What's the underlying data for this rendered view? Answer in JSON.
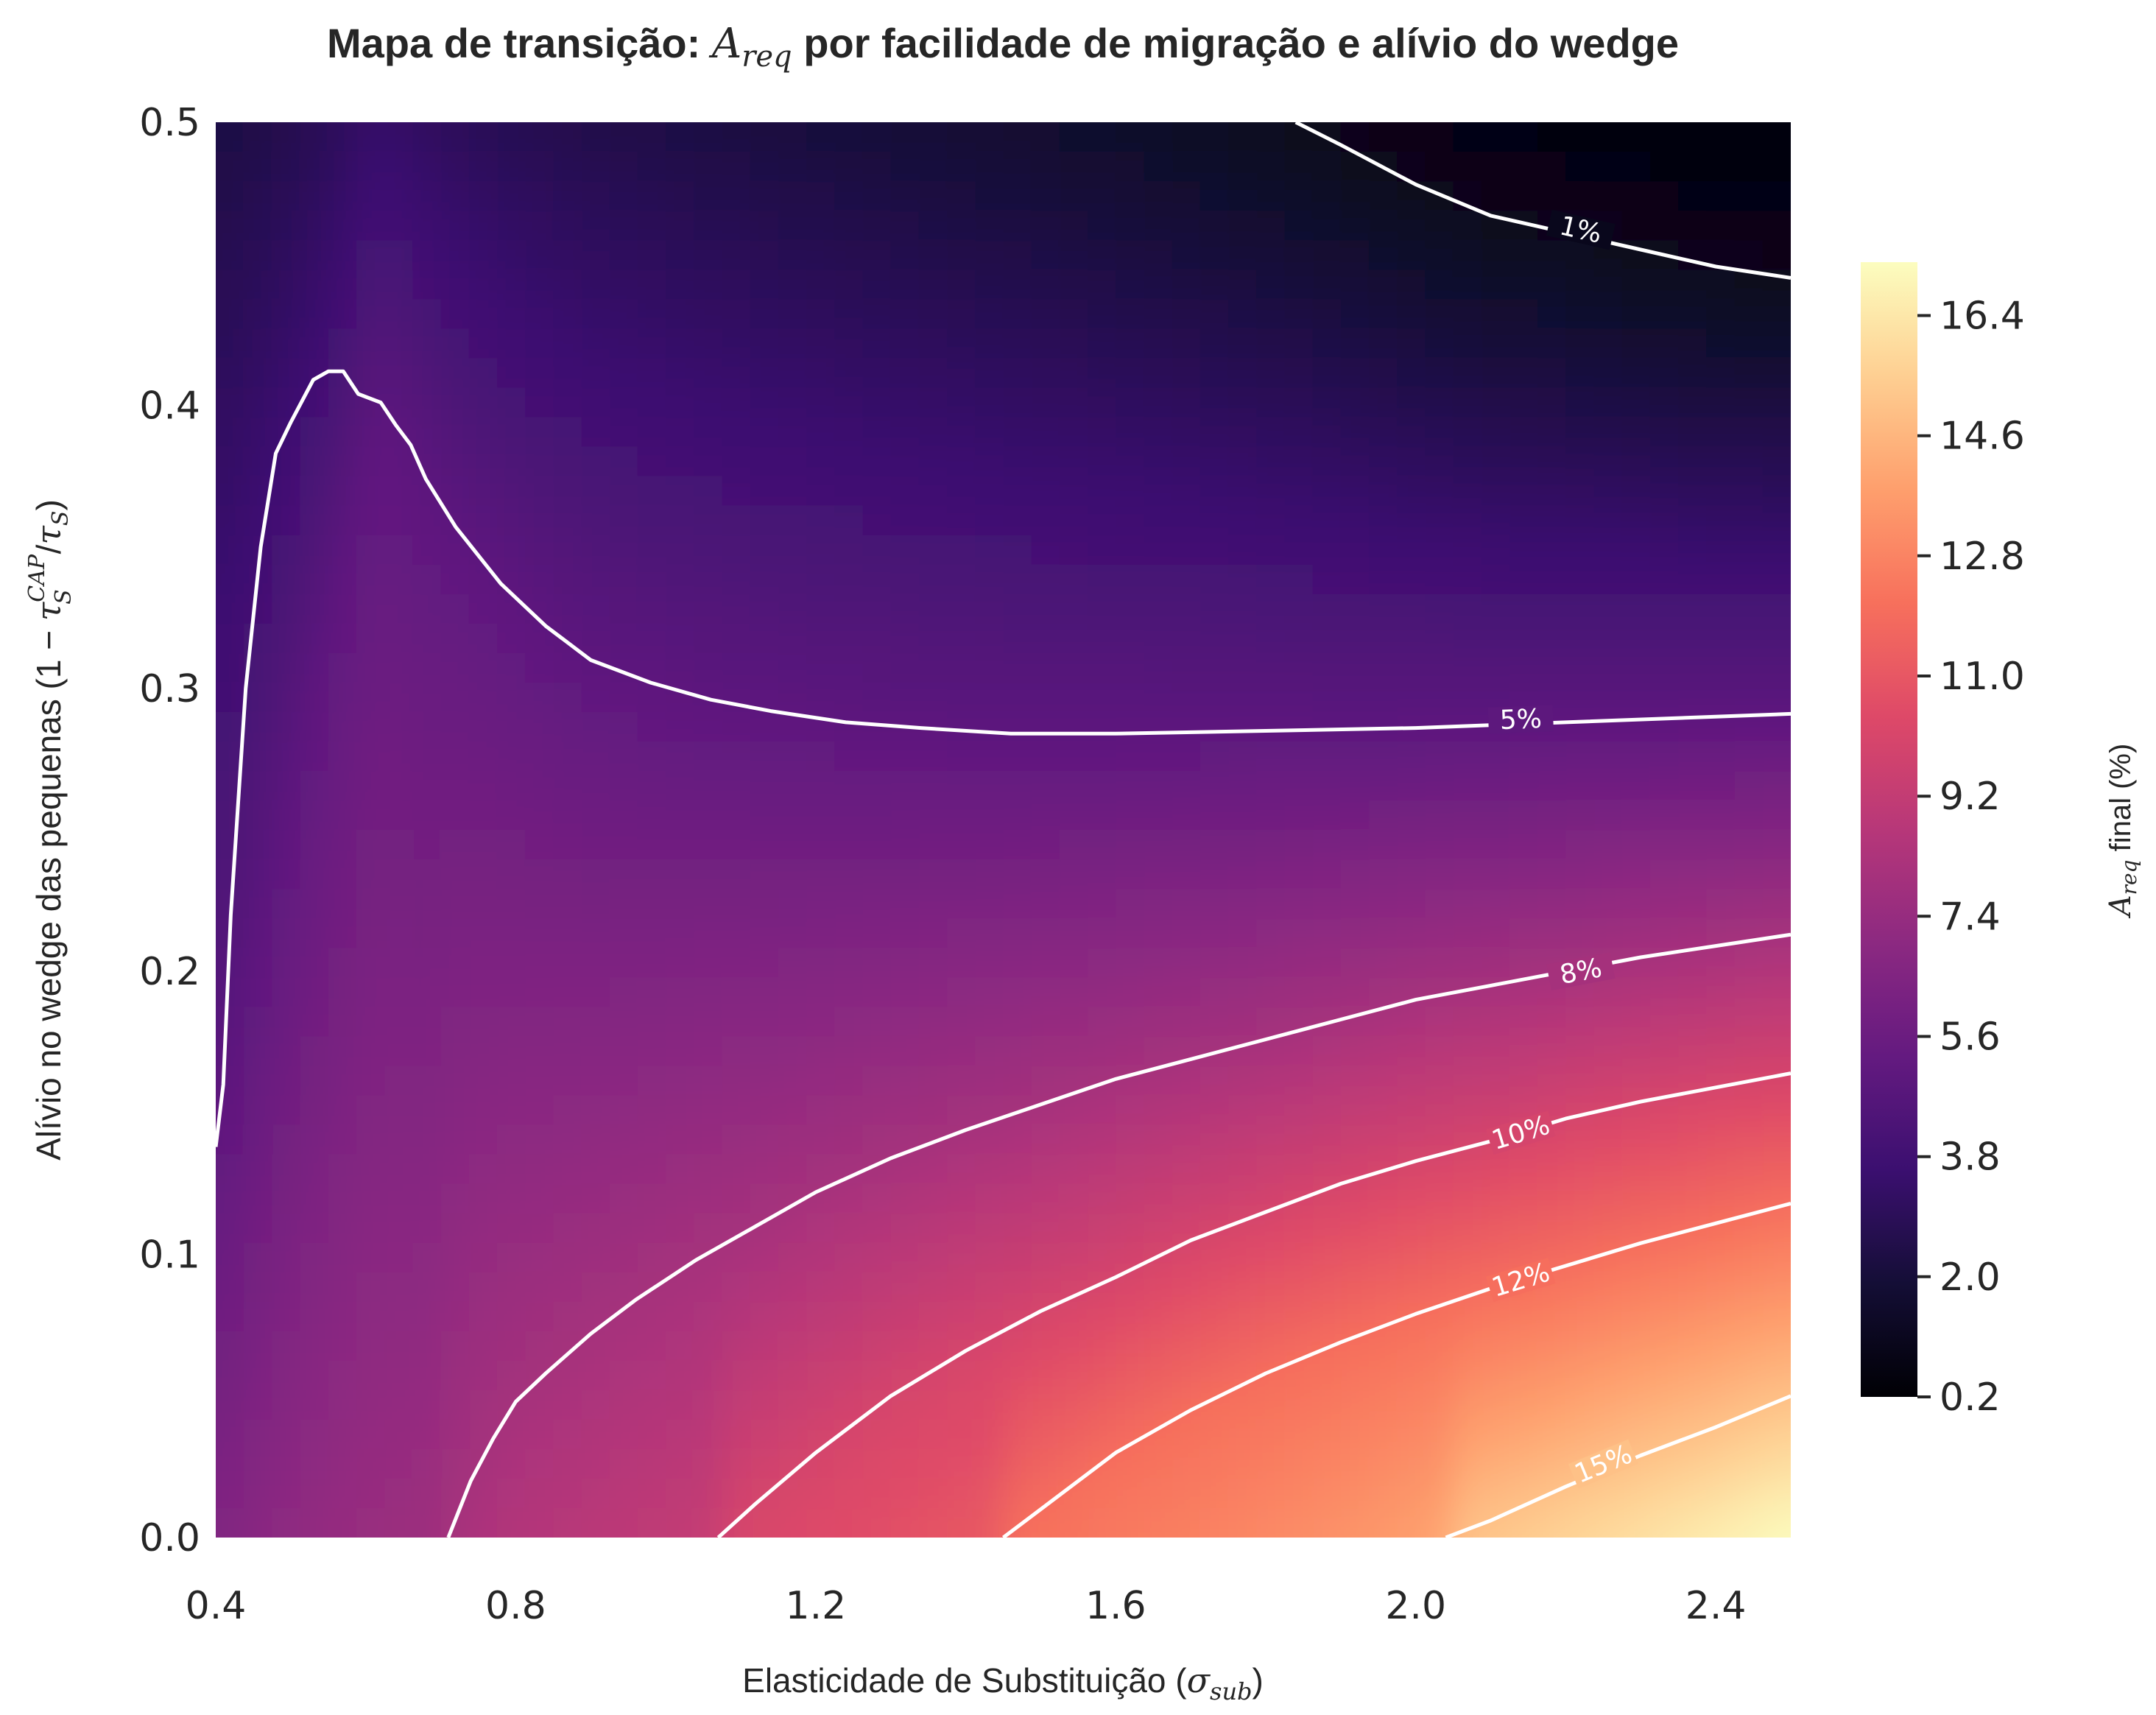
{
  "chart_data": {
    "type": "heatmap",
    "subtype": "filled-contour",
    "title_prefix": "Mapa de transição: ",
    "title_var": "A",
    "title_sub": "req",
    "title_suffix": " por facilidade de migração e alívio do wedge",
    "xlabel_prefix": "Elasticidade de Substituição (",
    "xlabel_var": "σ",
    "xlabel_sub": "sub",
    "xlabel_suffix": ")",
    "ylabel_prefix": "Alívio no wedge das pequenas (1 − ",
    "ylabel_var": "τ",
    "ylabel_sub": "S",
    "ylabel_sup": "CAP",
    "ylabel_mid": "/",
    "ylabel_var2": "τ",
    "ylabel_sub2": "S",
    "ylabel_suffix": ")",
    "xlim": [
      0.4,
      2.5
    ],
    "ylim": [
      0.0,
      0.5
    ],
    "x_ticks": [
      "0.4",
      "0.8",
      "1.2",
      "1.6",
      "2.0",
      "2.4"
    ],
    "y_ticks": [
      "0.0",
      "0.1",
      "0.2",
      "0.3",
      "0.4",
      "0.5"
    ],
    "colormap": "magma",
    "colorbar": {
      "var": "A",
      "sub": "req",
      "suffix": " final (%)",
      "range": [
        0.2,
        17.2
      ],
      "ticks": [
        "0.2",
        "2.0",
        "3.8",
        "5.6",
        "7.4",
        "9.2",
        "11.0",
        "12.8",
        "14.6",
        "16.4"
      ]
    },
    "contours": [
      {
        "level": 1,
        "label": "1%",
        "label_at": [
          2.22,
          0.462
        ],
        "points": [
          [
            1.84,
            0.5
          ],
          [
            1.9,
            0.492
          ],
          [
            2.0,
            0.478
          ],
          [
            2.1,
            0.467
          ],
          [
            2.2,
            0.461
          ],
          [
            2.3,
            0.455
          ],
          [
            2.4,
            0.449
          ],
          [
            2.5,
            0.445
          ]
        ]
      },
      {
        "level": 5,
        "label": "5%",
        "label_at": [
          2.14,
          0.289
        ],
        "points": [
          [
            0.4,
            0.138
          ],
          [
            0.41,
            0.16
          ],
          [
            0.42,
            0.22
          ],
          [
            0.44,
            0.3
          ],
          [
            0.46,
            0.35
          ],
          [
            0.48,
            0.383
          ],
          [
            0.5,
            0.394
          ],
          [
            0.53,
            0.409
          ],
          [
            0.55,
            0.412
          ],
          [
            0.57,
            0.412
          ],
          [
            0.59,
            0.404
          ],
          [
            0.62,
            0.401
          ],
          [
            0.64,
            0.393
          ],
          [
            0.66,
            0.386
          ],
          [
            0.68,
            0.374
          ],
          [
            0.72,
            0.357
          ],
          [
            0.78,
            0.337
          ],
          [
            0.84,
            0.322
          ],
          [
            0.9,
            0.31
          ],
          [
            0.98,
            0.302
          ],
          [
            1.06,
            0.296
          ],
          [
            1.14,
            0.292
          ],
          [
            1.24,
            0.288
          ],
          [
            1.34,
            0.286
          ],
          [
            1.46,
            0.284
          ],
          [
            1.6,
            0.284
          ],
          [
            1.8,
            0.285
          ],
          [
            2.0,
            0.286
          ],
          [
            2.2,
            0.288
          ],
          [
            2.4,
            0.29
          ],
          [
            2.5,
            0.291
          ]
        ]
      },
      {
        "level": 8,
        "label": "8%",
        "label_at": [
          2.22,
          0.2
        ],
        "points": [
          [
            0.71,
            0.0
          ],
          [
            0.74,
            0.02
          ],
          [
            0.77,
            0.035
          ],
          [
            0.8,
            0.048
          ],
          [
            0.84,
            0.058
          ],
          [
            0.9,
            0.072
          ],
          [
            0.96,
            0.084
          ],
          [
            1.04,
            0.098
          ],
          [
            1.12,
            0.11
          ],
          [
            1.2,
            0.122
          ],
          [
            1.3,
            0.134
          ],
          [
            1.4,
            0.144
          ],
          [
            1.5,
            0.153
          ],
          [
            1.6,
            0.162
          ],
          [
            1.7,
            0.169
          ],
          [
            1.8,
            0.176
          ],
          [
            1.9,
            0.183
          ],
          [
            2.0,
            0.19
          ],
          [
            2.1,
            0.195
          ],
          [
            2.2,
            0.2
          ],
          [
            2.3,
            0.205
          ],
          [
            2.4,
            0.209
          ],
          [
            2.5,
            0.213
          ]
        ]
      },
      {
        "level": 10,
        "label": "10%",
        "label_at": [
          2.14,
          0.143
        ],
        "points": [
          [
            1.07,
            0.0
          ],
          [
            1.12,
            0.012
          ],
          [
            1.2,
            0.03
          ],
          [
            1.3,
            0.05
          ],
          [
            1.4,
            0.066
          ],
          [
            1.5,
            0.08
          ],
          [
            1.6,
            0.092
          ],
          [
            1.7,
            0.105
          ],
          [
            1.8,
            0.115
          ],
          [
            1.9,
            0.125
          ],
          [
            2.0,
            0.133
          ],
          [
            2.1,
            0.14
          ],
          [
            2.2,
            0.148
          ],
          [
            2.3,
            0.154
          ],
          [
            2.4,
            0.159
          ],
          [
            2.5,
            0.164
          ]
        ]
      },
      {
        "level": 12,
        "label": "12%",
        "label_at": [
          2.14,
          0.091
        ],
        "points": [
          [
            1.45,
            0.0
          ],
          [
            1.5,
            0.01
          ],
          [
            1.6,
            0.03
          ],
          [
            1.7,
            0.045
          ],
          [
            1.8,
            0.058
          ],
          [
            1.9,
            0.069
          ],
          [
            2.0,
            0.079
          ],
          [
            2.1,
            0.088
          ],
          [
            2.2,
            0.096
          ],
          [
            2.3,
            0.104
          ],
          [
            2.4,
            0.111
          ],
          [
            2.5,
            0.118
          ]
        ]
      },
      {
        "level": 15,
        "label": "15%",
        "label_at": [
          2.25,
          0.026
        ],
        "points": [
          [
            2.04,
            0.0
          ],
          [
            2.1,
            0.006
          ],
          [
            2.2,
            0.018
          ],
          [
            2.3,
            0.029
          ],
          [
            2.4,
            0.039
          ],
          [
            2.5,
            0.05
          ]
        ]
      }
    ]
  }
}
